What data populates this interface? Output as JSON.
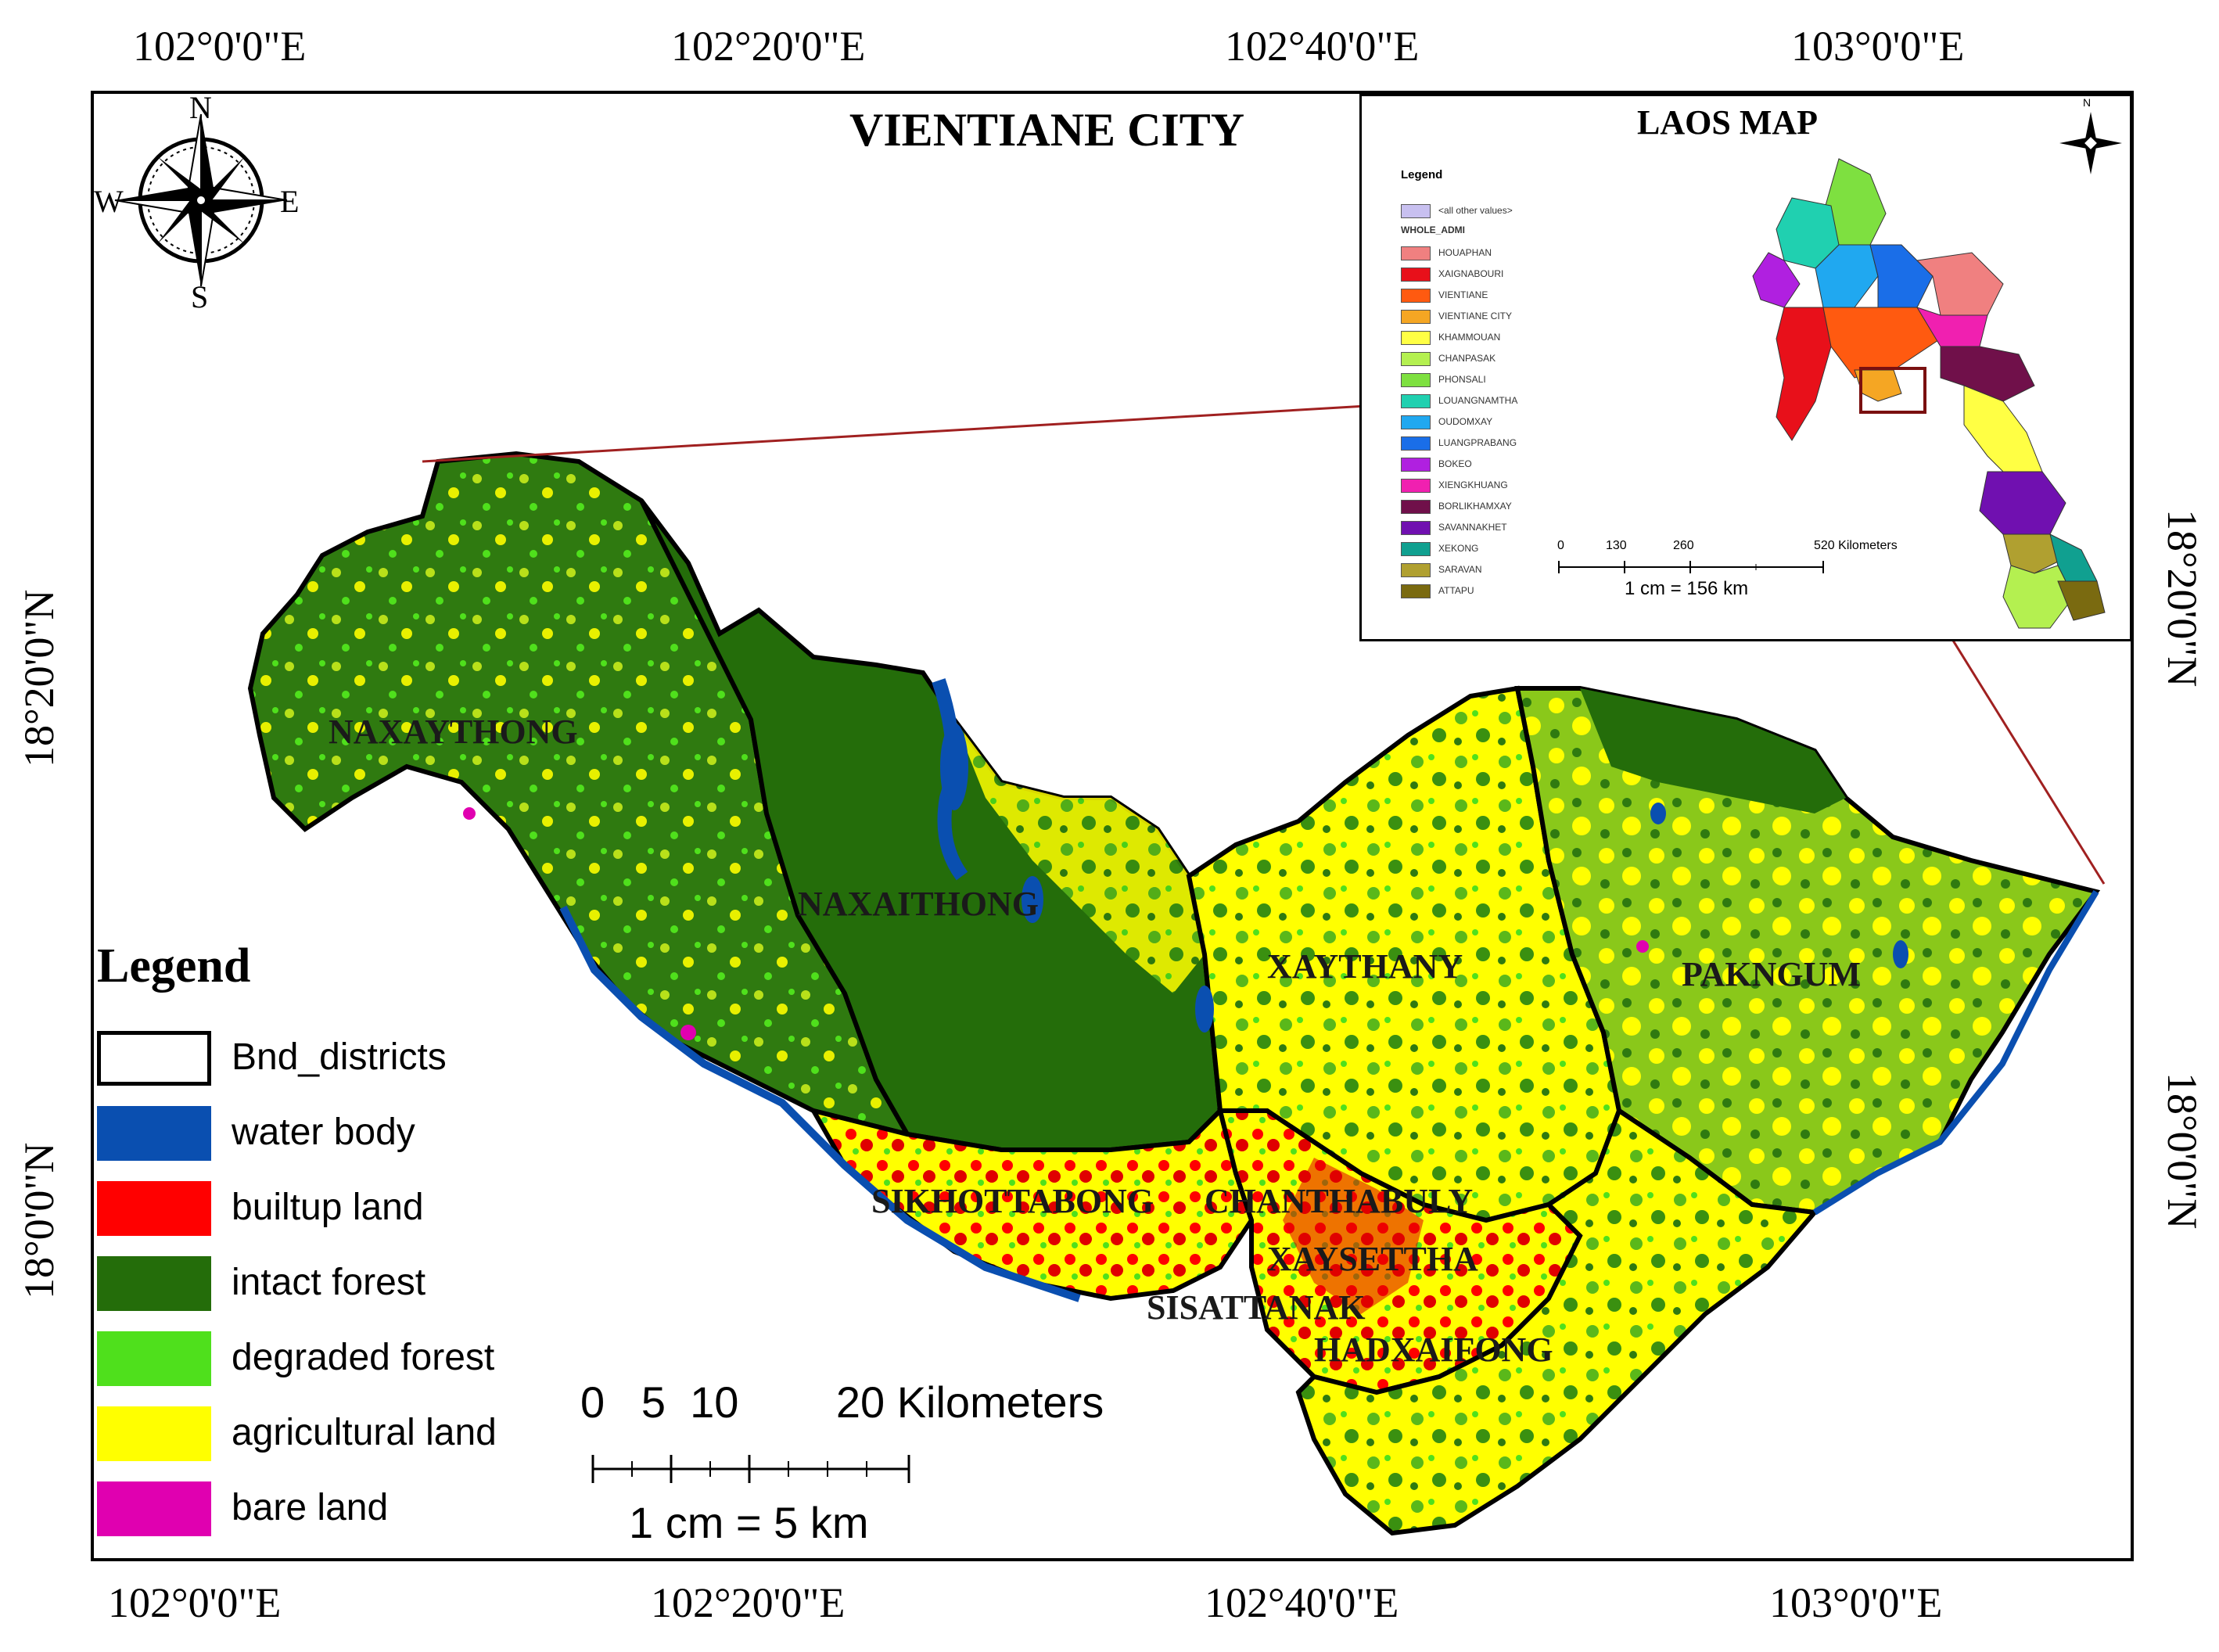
{
  "map": {
    "title": "VIENTIANE CITY",
    "coords_top": [
      "102°0'0\"E",
      "102°20'0\"E",
      "102°40'0\"E",
      "103°0'0\"E"
    ],
    "coords_bottom": [
      "102°0'0\"E",
      "102°20'0\"E",
      "102°40'0\"E",
      "103°0'0\"E"
    ],
    "coords_left": [
      "18°20'0\"N",
      "18°0'0\"N"
    ],
    "coords_right": [
      "18°20'0\"N",
      "18°0'0\"N"
    ],
    "districts": [
      "NAXAYTHONG",
      "NAXAITHONG",
      "XAYTHANY",
      "PAKNGUM",
      "SIKHOTTABONG",
      "CHANTHABULY",
      "XAYSETTHA",
      "SISATTANAK",
      "HADXAIFONG"
    ],
    "compass": {
      "n": "N",
      "s": "S",
      "e": "E",
      "w": "W"
    }
  },
  "legend": {
    "title": "Legend",
    "items": [
      {
        "label": "Bnd_districts",
        "color": "#ffffff"
      },
      {
        "label": "water body",
        "color": "#0a4fb0"
      },
      {
        "label": "builtup land",
        "color": "#ff0000"
      },
      {
        "label": "intact forest",
        "color": "#246d0a"
      },
      {
        "label": "degraded forest",
        "color": "#4fe01c"
      },
      {
        "label": "agricultural land",
        "color": "#ffff00"
      },
      {
        "label": "bare land",
        "color": "#e000b0"
      }
    ]
  },
  "scale": {
    "numbers": "0   5  10        20 Kilometers",
    "ratio": "1 cm = 5 km"
  },
  "inset": {
    "title": "LAOS MAP",
    "north": "N",
    "legend_title": "Legend",
    "legend_other": "<all other values>",
    "legend_field": "WHOLE_ADMI",
    "items": [
      {
        "label": "HOUAPHAN",
        "color": "#f08080"
      },
      {
        "label": "XAIGNABOURI",
        "color": "#e8101a"
      },
      {
        "label": "VIENTIANE",
        "color": "#ff5a10"
      },
      {
        "label": "VIENTIANE CITY",
        "color": "#f5a623"
      },
      {
        "label": "KHAMMOUAN",
        "color": "#ffff44"
      },
      {
        "label": "CHANPASAK",
        "color": "#b4f050"
      },
      {
        "label": "PHONSALI",
        "color": "#7ee040"
      },
      {
        "label": "LOUANGNAMTHA",
        "color": "#20d0b0"
      },
      {
        "label": "OUDOMXAY",
        "color": "#20a8f0"
      },
      {
        "label": "LUANGPRABANG",
        "color": "#1a6ee8"
      },
      {
        "label": "BOKEO",
        "color": "#b020e0"
      },
      {
        "label": "XIENGKHUANG",
        "color": "#f020b0"
      },
      {
        "label": "BORLIKHAMXAY",
        "color": "#70104a"
      },
      {
        "label": "SAVANNAKHET",
        "color": "#7010b0"
      },
      {
        "label": "XEKONG",
        "color": "#10a090"
      },
      {
        "label": "SARAVAN",
        "color": "#b0a030"
      },
      {
        "label": "ATTAPU",
        "color": "#7a6a10"
      }
    ],
    "scale_ticks": [
      "0",
      "130",
      "260",
      "520 Kilometers"
    ],
    "scale_ratio": "1 cm = 156 km"
  }
}
